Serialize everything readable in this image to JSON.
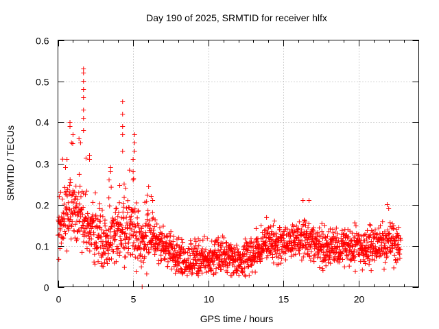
{
  "chart_data": {
    "type": "scatter",
    "title": "Day 190 of 2025, SRMTID for receiver hlfx",
    "xlabel": "GPS time / hours",
    "ylabel": "SRMTID / TECUs",
    "xlim": [
      0,
      24
    ],
    "ylim": [
      0,
      0.6
    ],
    "x_ticks": [
      0,
      5,
      10,
      15,
      20
    ],
    "x_tick_labels": [
      "0",
      "5",
      "10",
      "15",
      "20"
    ],
    "y_ticks": [
      0,
      0.1,
      0.2,
      0.3,
      0.4,
      0.5,
      0.6
    ],
    "y_tick_labels": [
      "0",
      "0.1",
      "0.2",
      "0.3",
      "0.4",
      "0.5",
      "0.6"
    ],
    "grid": true,
    "marker": "plus",
    "color": "#ff0000",
    "series": [
      {
        "name": "SRMTID",
        "x_range": [
          0,
          22.8
        ],
        "baseline_profile": [
          [
            0,
            0.13
          ],
          [
            0.5,
            0.17
          ],
          [
            1,
            0.18
          ],
          [
            1.5,
            0.16
          ],
          [
            2,
            0.14
          ],
          [
            2.5,
            0.12
          ],
          [
            3,
            0.1
          ],
          [
            3.5,
            0.12
          ],
          [
            4,
            0.13
          ],
          [
            4.5,
            0.14
          ],
          [
            5,
            0.13
          ],
          [
            5.5,
            0.11
          ],
          [
            6,
            0.12
          ],
          [
            7,
            0.1
          ],
          [
            8,
            0.07
          ],
          [
            9,
            0.06
          ],
          [
            10,
            0.07
          ],
          [
            11,
            0.08
          ],
          [
            12,
            0.06
          ],
          [
            13,
            0.08
          ],
          [
            14,
            0.11
          ],
          [
            15,
            0.1
          ],
          [
            16,
            0.12
          ],
          [
            17,
            0.11
          ],
          [
            18,
            0.09
          ],
          [
            19,
            0.1
          ],
          [
            20,
            0.09
          ],
          [
            21,
            0.1
          ],
          [
            22,
            0.11
          ],
          [
            22.8,
            0.1
          ]
        ],
        "spread": 0.045,
        "point_count": 1900,
        "notable_points": [
          {
            "x": 1.7,
            "y": 0.53
          },
          {
            "x": 1.7,
            "y": 0.52
          },
          {
            "x": 1.7,
            "y": 0.5
          },
          {
            "x": 1.7,
            "y": 0.48
          },
          {
            "x": 1.7,
            "y": 0.46
          },
          {
            "x": 1.7,
            "y": 0.43
          },
          {
            "x": 1.7,
            "y": 0.41
          },
          {
            "x": 1.7,
            "y": 0.38
          },
          {
            "x": 4.3,
            "y": 0.45
          },
          {
            "x": 4.3,
            "y": 0.42
          },
          {
            "x": 4.3,
            "y": 0.39
          },
          {
            "x": 4.3,
            "y": 0.37
          },
          {
            "x": 4.3,
            "y": 0.33
          },
          {
            "x": 0.8,
            "y": 0.4
          },
          {
            "x": 0.8,
            "y": 0.39
          },
          {
            "x": 1.0,
            "y": 0.37
          },
          {
            "x": 0.9,
            "y": 0.35
          },
          {
            "x": 1.4,
            "y": 0.36
          },
          {
            "x": 1.5,
            "y": 0.35
          },
          {
            "x": 2.1,
            "y": 0.32
          },
          {
            "x": 2.1,
            "y": 0.31
          },
          {
            "x": 0.5,
            "y": 0.29
          },
          {
            "x": 0.6,
            "y": 0.31
          },
          {
            "x": 3.5,
            "y": 0.29
          },
          {
            "x": 3.5,
            "y": 0.28
          },
          {
            "x": 3.4,
            "y": 0.26
          },
          {
            "x": 5.1,
            "y": 0.37
          },
          {
            "x": 5.1,
            "y": 0.35
          },
          {
            "x": 5.1,
            "y": 0.33
          },
          {
            "x": 5.0,
            "y": 0.31
          },
          {
            "x": 5.0,
            "y": 0.28
          },
          {
            "x": 5.0,
            "y": 0.26
          },
          {
            "x": 4.4,
            "y": 0.25
          },
          {
            "x": 4.5,
            "y": 0.24
          },
          {
            "x": 6.2,
            "y": 0.22
          },
          {
            "x": 6.3,
            "y": 0.21
          },
          {
            "x": 16.3,
            "y": 0.21
          },
          {
            "x": 16.7,
            "y": 0.21
          },
          {
            "x": 21.9,
            "y": 0.2
          },
          {
            "x": 22.0,
            "y": 0.19
          },
          {
            "x": 5.6,
            "y": 0.0
          }
        ]
      }
    ]
  }
}
